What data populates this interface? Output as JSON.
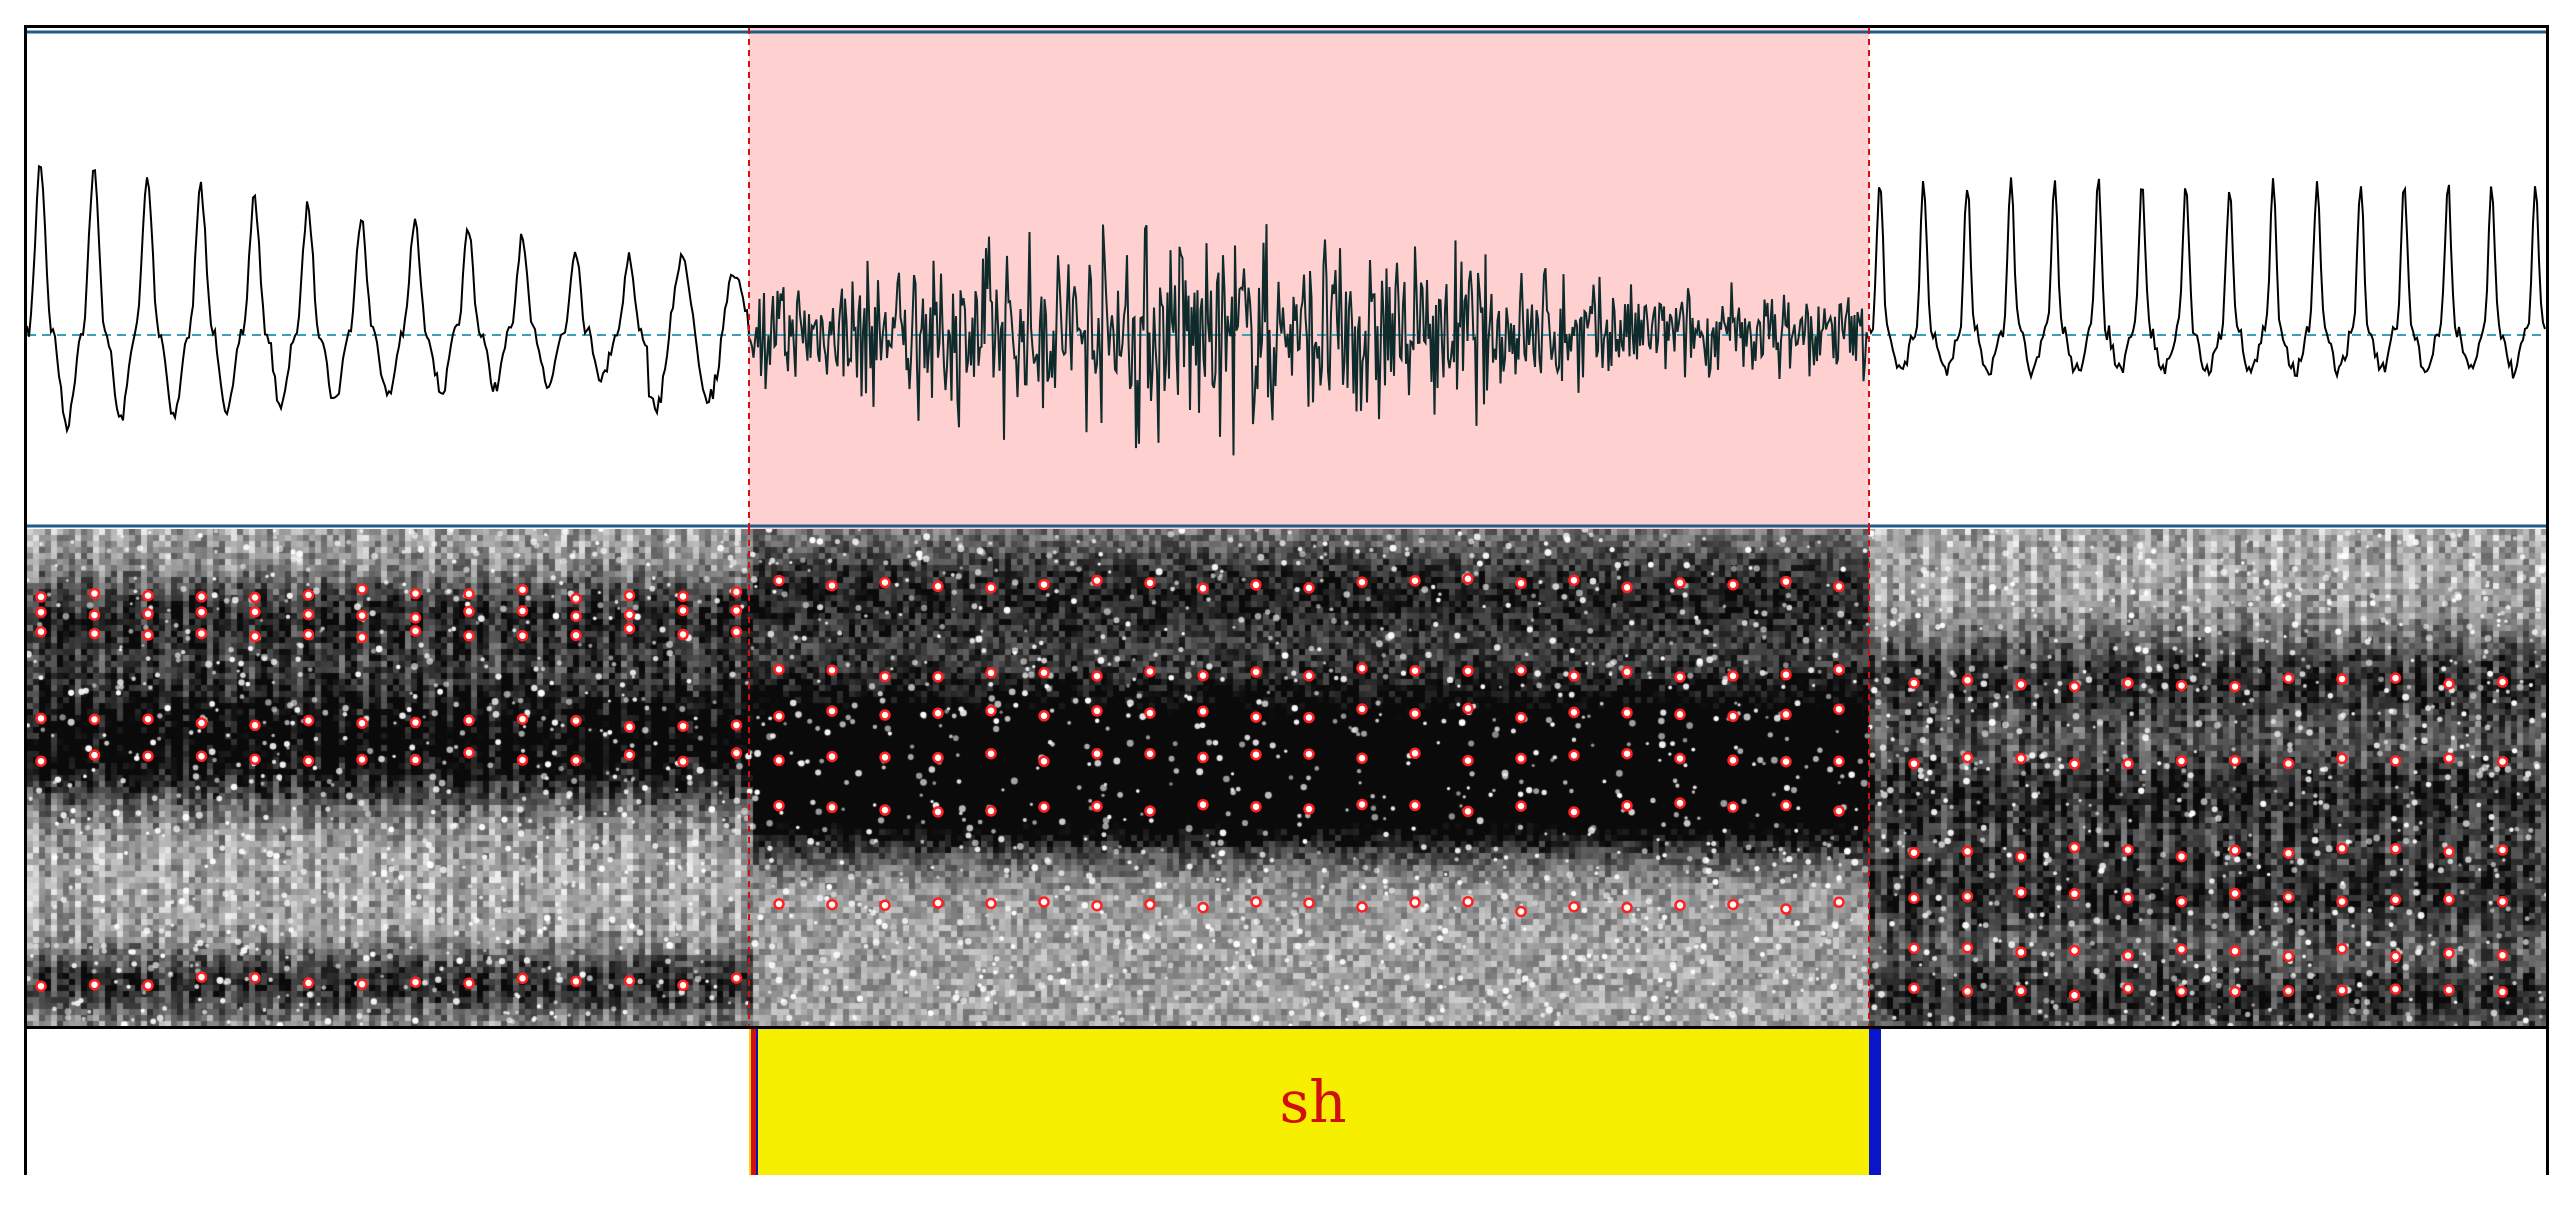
{
  "segment": {
    "label": "sh",
    "start_ratio": 0.2865,
    "end_ratio": 0.7312
  },
  "colors": {
    "waveform": "#000000",
    "selected_waveform": "#0e2a2a",
    "selection_fill": "#ffd0d0",
    "zero_line": "#3aa0b8",
    "panel_border": "#1e5a8a",
    "boundary_dashed": "#d01010",
    "formant_marker": "#ff2020",
    "segment_fill": "#f7ef00",
    "segment_text": "#d01010",
    "segment_end_bar": "#0a14c8"
  },
  "icons": [
    "formant-marker-icon"
  ]
}
